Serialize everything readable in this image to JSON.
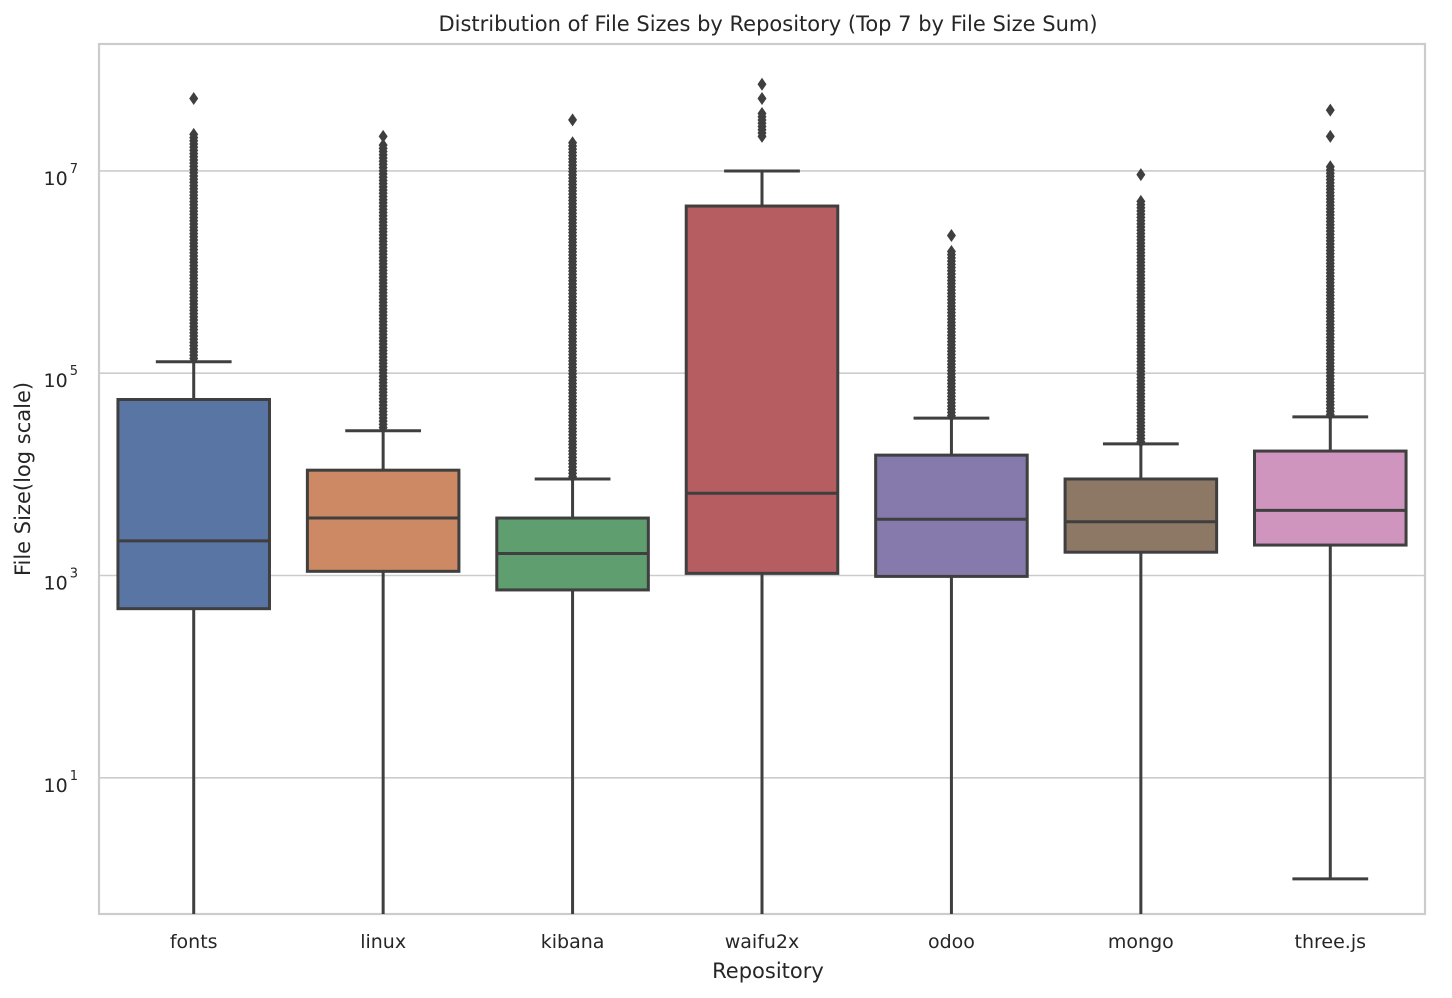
{
  "chart_data": {
    "type": "box",
    "title": "Distribution of File Sizes by Repository (Top 7 by File Size Sum)",
    "xlabel": "Repository",
    "ylabel": "File Size(log scale)",
    "yscale": "log",
    "ylim": [
      0.45,
      180000000
    ],
    "grid": "y",
    "yticks": [
      {
        "base": "10",
        "exp": "1",
        "value": 10
      },
      {
        "base": "10",
        "exp": "3",
        "value": 1000
      },
      {
        "base": "10",
        "exp": "5",
        "value": 100000
      },
      {
        "base": "10",
        "exp": "7",
        "value": 10000000
      }
    ],
    "categories": [
      "fonts",
      "linux",
      "kibana",
      "waifu2x",
      "odoo",
      "mongo",
      "three.js"
    ],
    "boxes": [
      {
        "name": "fonts",
        "color": "#5975a4",
        "whislo": 0.45,
        "q1": 470,
        "med": 2200,
        "q3": 55000,
        "whishi": 130000,
        "flier_min": 140000,
        "flier_max": 23000000,
        "outliers": [
          52000000
        ]
      },
      {
        "name": "linux",
        "color": "#cc8963",
        "whislo": 0.45,
        "q1": 1100,
        "med": 3700,
        "q3": 11000,
        "whishi": 27000,
        "flier_min": 29000,
        "flier_max": 18000000,
        "outliers": [
          22000000
        ]
      },
      {
        "name": "kibana",
        "color": "#5f9e6e",
        "whislo": 0.45,
        "q1": 720,
        "med": 1650,
        "q3": 3700,
        "whishi": 9000,
        "flier_min": 9500,
        "flier_max": 19000000,
        "outliers": [
          32000000
        ]
      },
      {
        "name": "waifu2x",
        "color": "#b55d60",
        "whislo": 0.45,
        "q1": 1050,
        "med": 6500,
        "q3": 4500000,
        "whishi": 10000000,
        "flier_min": 22000000,
        "flier_max": 37000000,
        "outliers": [
          52000000,
          72000000
        ]
      },
      {
        "name": "odoo",
        "color": "#857aab",
        "whislo": 0.45,
        "q1": 980,
        "med": 3600,
        "q3": 15500,
        "whishi": 36000,
        "flier_min": 38000,
        "flier_max": 1600000,
        "outliers": [
          2300000
        ]
      },
      {
        "name": "mongo",
        "color": "#8d7866",
        "whislo": 0.45,
        "q1": 1700,
        "med": 3400,
        "q3": 9000,
        "whishi": 20000,
        "flier_min": 21000,
        "flier_max": 5000000,
        "outliers": [
          9200000
        ]
      },
      {
        "name": "three.js",
        "color": "#d095bf",
        "whislo": 1,
        "q1": 2000,
        "med": 4400,
        "q3": 17000,
        "whishi": 37000,
        "flier_min": 39000,
        "flier_max": 11000000,
        "outliers": [
          22000000,
          40000000
        ]
      }
    ]
  }
}
